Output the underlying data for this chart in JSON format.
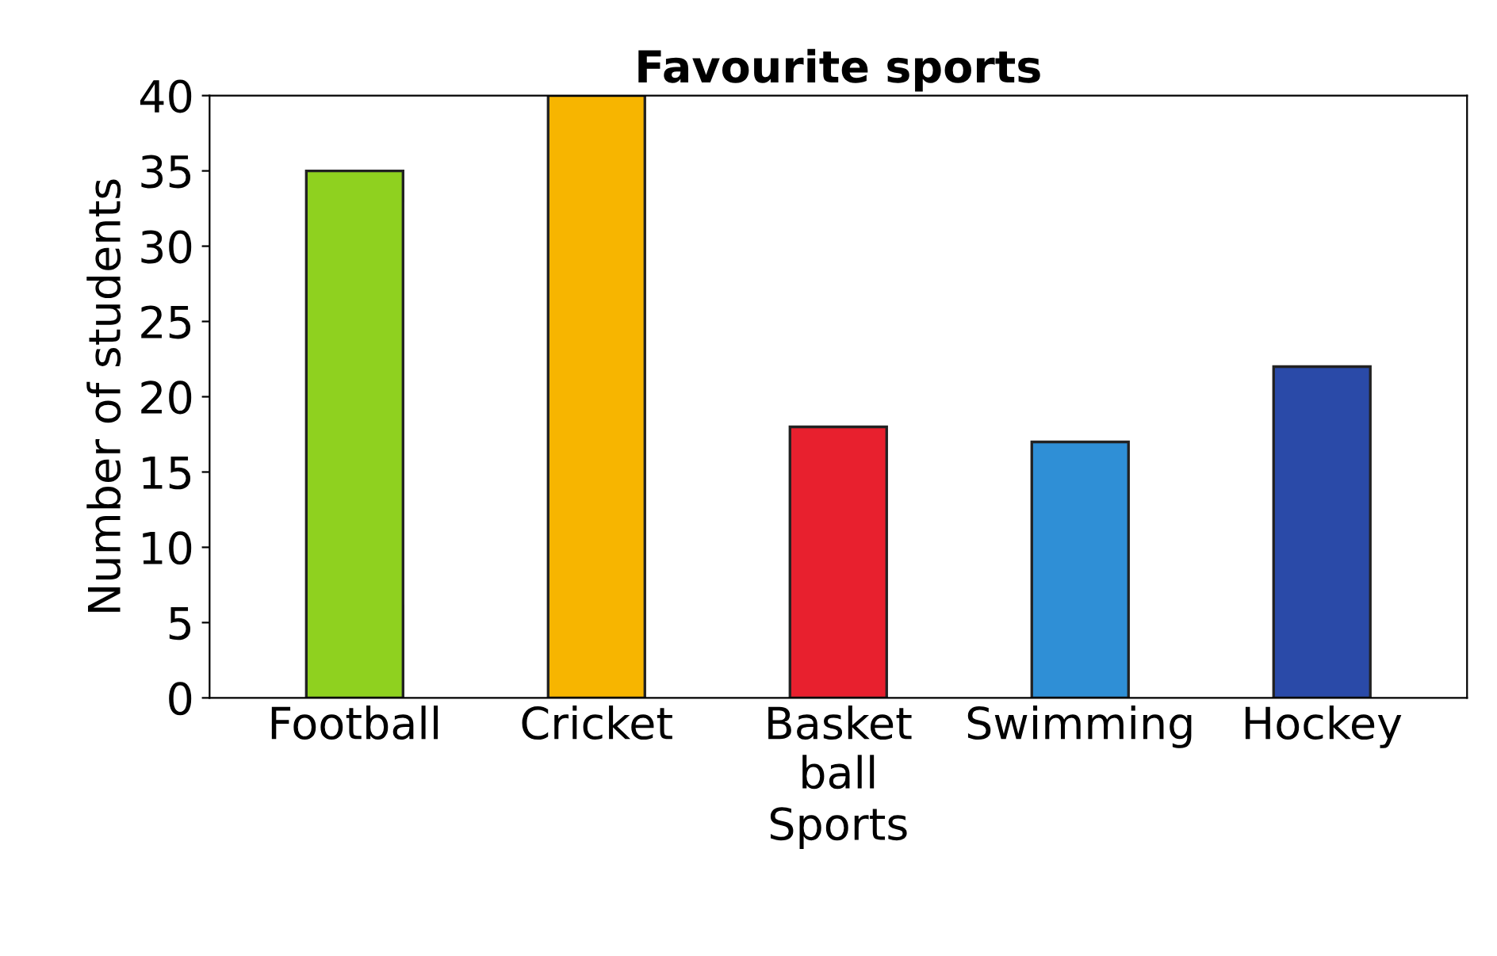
{
  "chart_data": {
    "type": "bar",
    "title": "Favourite sports",
    "xlabel": "Sports",
    "ylabel": "Number of students",
    "categories": [
      "Football",
      "Cricket",
      "Basket\nball",
      "Swimming",
      "Hockey"
    ],
    "values": [
      35,
      40,
      18,
      17,
      22
    ],
    "colors": [
      "#8fd11f",
      "#f7b500",
      "#e8202e",
      "#2f8fd6",
      "#2a4aa8"
    ],
    "ylim": [
      0,
      40
    ],
    "yticks": [
      0,
      5,
      10,
      15,
      20,
      25,
      30,
      35,
      40
    ],
    "grid": false
  }
}
